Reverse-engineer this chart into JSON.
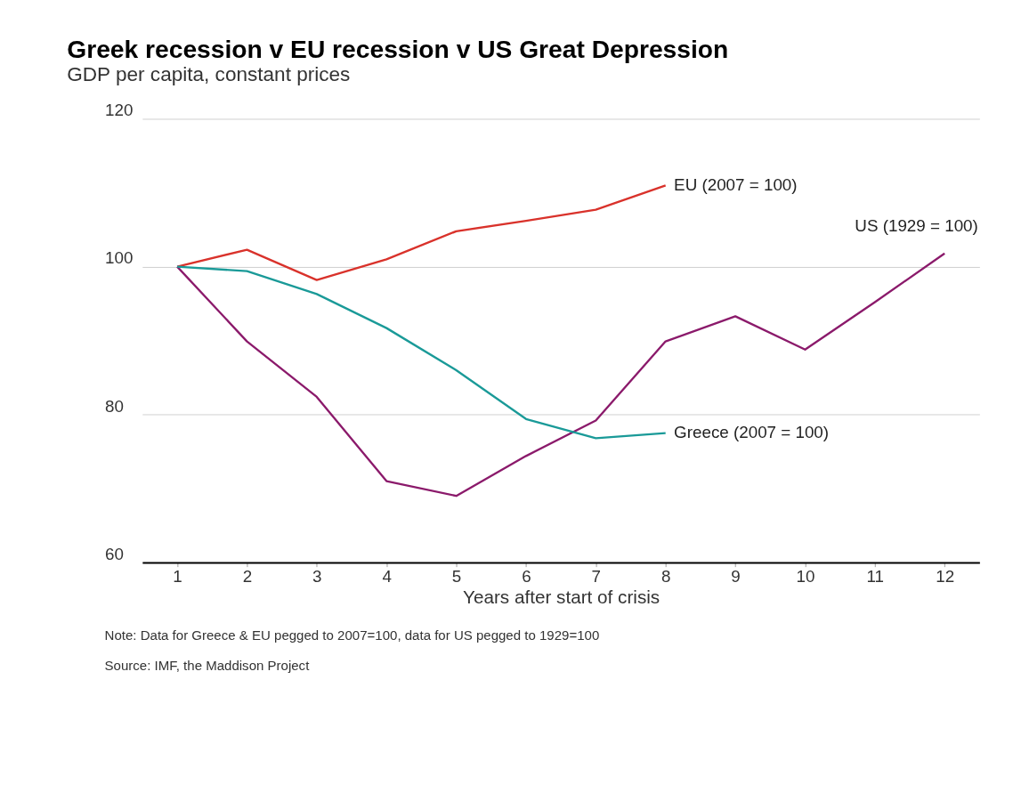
{
  "chart_data": {
    "type": "line",
    "title": "Greek recession v EU recession v US Great Depression",
    "subtitle": "GDP per capita, constant prices",
    "xlabel": "Years after start of crisis",
    "x": [
      1,
      2,
      3,
      4,
      5,
      6,
      7,
      8,
      9,
      10,
      11,
      12
    ],
    "series": [
      {
        "name": "EU (2007 = 100)",
        "color": "#d9322b",
        "values": [
          100,
          102.3,
          98.2,
          101.0,
          104.8,
          106.2,
          107.7,
          111.0,
          null,
          null,
          null,
          null
        ]
      },
      {
        "name": "US (1929 = 100)",
        "color": "#8b1a6b",
        "values": [
          100,
          89.9,
          82.4,
          71.0,
          69.0,
          74.4,
          79.2,
          89.9,
          93.3,
          88.8,
          95.2,
          101.8
        ]
      },
      {
        "name": "Greece (2007 = 100)",
        "color": "#1a9a98",
        "values": [
          100,
          99.4,
          96.3,
          91.7,
          86.0,
          79.4,
          76.8,
          77.5,
          null,
          null,
          null,
          null
        ]
      }
    ],
    "xlim": [
      0.5,
      12.5
    ],
    "xticks": [
      1,
      2,
      3,
      4,
      5,
      6,
      7,
      8,
      9,
      10,
      11,
      12
    ],
    "ylim": [
      60,
      120
    ],
    "yticks": [
      60,
      80,
      100,
      120
    ],
    "grid": "y",
    "marker": "none",
    "line_style": "solid",
    "annotations": [
      "Note: Data for Greece & EU pegged to 2007=100, data for US pegged to 1929=100",
      "Source: IMF, the Maddison Project"
    ]
  }
}
